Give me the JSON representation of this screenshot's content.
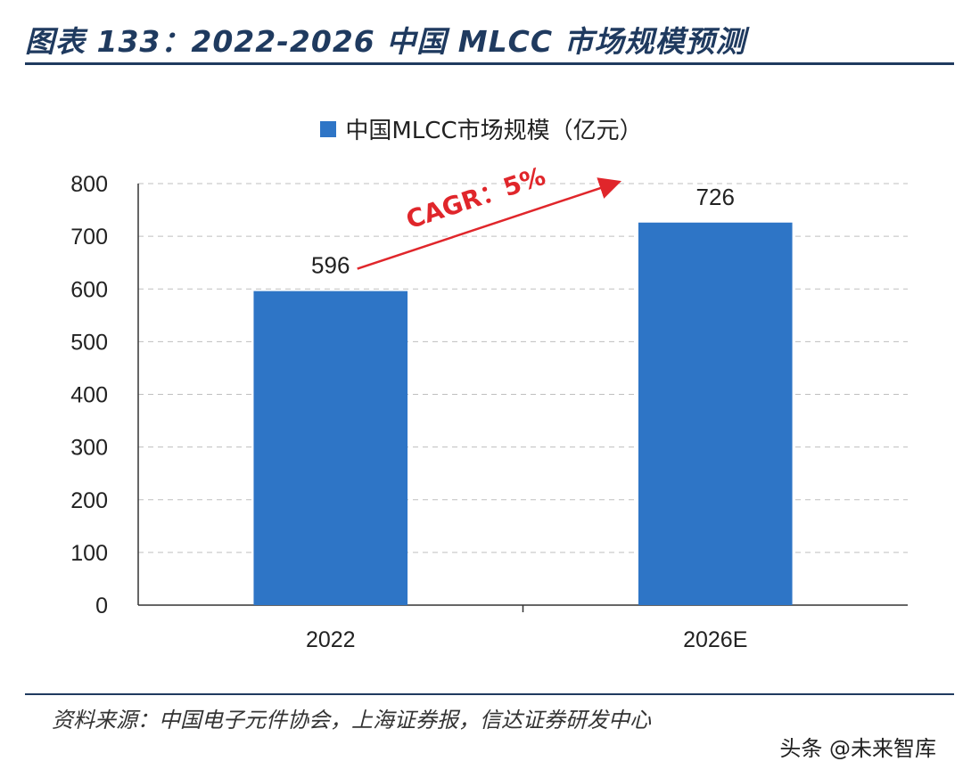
{
  "header": {
    "title": "图表 133：2022-2026 中国 MLCC 市场规模预测"
  },
  "chart_data": {
    "type": "bar",
    "title": "",
    "categories": [
      "2022",
      "2026E"
    ],
    "series": [
      {
        "name": "中国MLCC市场规模（亿元）",
        "values": [
          596,
          726
        ],
        "color": "#2e75c6"
      }
    ],
    "ylim": [
      0,
      800
    ],
    "yticks": [
      0,
      100,
      200,
      300,
      400,
      500,
      600,
      700,
      800
    ],
    "grid": true,
    "legend_position": "top-center",
    "annotation": {
      "text": "CAGR：5%",
      "color": "#e0262b"
    }
  },
  "footer": {
    "source": "资料来源：中国电子元件协会，上海证券报，信达证券研发中心",
    "watermark": "头条 @未来智库"
  }
}
